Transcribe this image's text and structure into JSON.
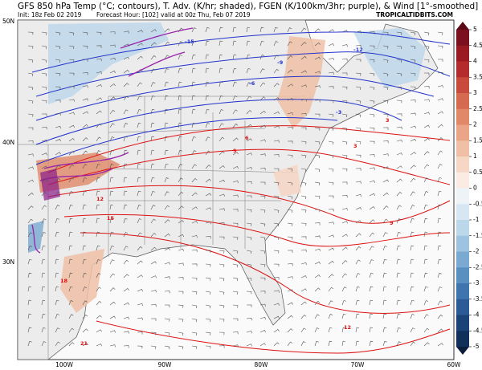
{
  "header": {
    "title": "GFS 850 hPa Temp (°C; contours), T. Adv. (K/hr; shaded), FGEN (K/100km/3hr; purple), & Wind [1°-smoothed]",
    "init": "Init: 18z Feb 02 2019",
    "forecast_hour": "Forecast Hour: [102]",
    "valid": "valid at 00z Thu, Feb 07 2019",
    "credit": "TROPICALTIDBITS.COM"
  },
  "axes": {
    "lat_labels": [
      "50N",
      "40N",
      "30N"
    ],
    "lon_labels": [
      "100W",
      "90W",
      "80W",
      "70W",
      "60W"
    ]
  },
  "colorbar": {
    "labels": [
      5,
      4.5,
      4,
      3.5,
      3,
      2.5,
      2,
      1.5,
      1,
      0.5,
      0,
      -0.5,
      -1,
      -1.5,
      -2,
      -2.5,
      -3,
      -3.5,
      -4,
      -4.5,
      -5
    ],
    "colors": [
      "#7a1020",
      "#9a1a22",
      "#b52a2a",
      "#c84a3c",
      "#d66a50",
      "#e08868",
      "#e9a585",
      "#f0bfa5",
      "#f6d6c4",
      "#fbebe2",
      "#eef3f8",
      "#d7e6f2",
      "#bcd6ea",
      "#9dc3e0",
      "#7aaad2",
      "#5a8fc2",
      "#3f74ae",
      "#2b5a96",
      "#1c4378",
      "#10305c"
    ]
  },
  "contour_labels": [
    "-15",
    "-12",
    "-9",
    "-6",
    "-3",
    "3",
    "6",
    "9",
    "12",
    "15",
    "18",
    "21",
    "3",
    "9",
    "12"
  ]
}
